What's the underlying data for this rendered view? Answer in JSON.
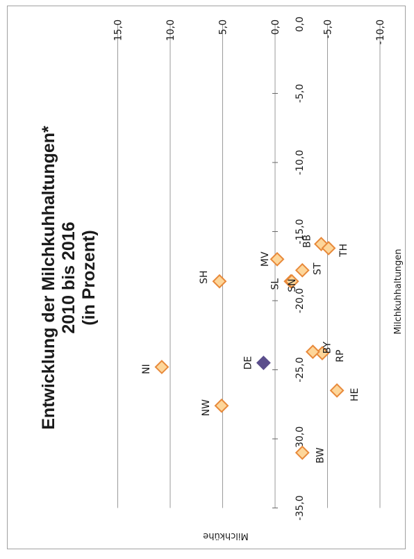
{
  "chart_data": {
    "type": "scatter",
    "title": [
      "Entwicklung der Milchkuhhaltungen*",
      "2010 bis 2016",
      "(in Prozent)"
    ],
    "xlabel": "Milchkuhhaltungen",
    "ylabel": "Milchkühe",
    "xlim": [
      -35,
      0
    ],
    "ylim": [
      -10,
      15
    ],
    "x_ticks": [
      "-35,0",
      "-30,0",
      "-25,0",
      "-20,0",
      "-15,0",
      "-10,0",
      "-5,0",
      "0,0"
    ],
    "y_ticks": [
      "-10,0",
      "-5,0",
      "0,0",
      "5,0",
      "10,0",
      "15,0"
    ],
    "grid": true,
    "colors": {
      "state_fill": "#fdd69a",
      "state_stroke": "#e8893a",
      "de_fill": "#5b4e8c",
      "grid": "#9a9a9a"
    },
    "points": [
      {
        "label": "BW",
        "x": -31.0,
        "y": -2.6
      },
      {
        "label": "NW",
        "x": -27.6,
        "y": 5.1
      },
      {
        "label": "HE",
        "x": -26.5,
        "y": -5.9
      },
      {
        "label": "NI",
        "x": -24.8,
        "y": 10.8
      },
      {
        "label": "DE",
        "x": -24.5,
        "y": 1.1,
        "highlight": true
      },
      {
        "label": "RP",
        "x": -23.8,
        "y": -4.5
      },
      {
        "label": "BY",
        "x": -23.7,
        "y": -3.6
      },
      {
        "label": "SH",
        "x": -18.6,
        "y": 5.3
      },
      {
        "label": "SL",
        "x": -18.6,
        "y": -1.5
      },
      {
        "label": "SN",
        "x": -18.6,
        "y": -1.6
      },
      {
        "label": "ST",
        "x": -17.8,
        "y": -2.6
      },
      {
        "label": "MV",
        "x": -17.0,
        "y": -0.2
      },
      {
        "label": "BB",
        "x": -15.9,
        "y": -4.4
      },
      {
        "label": "TH",
        "x": -16.2,
        "y": -5.1
      }
    ]
  }
}
